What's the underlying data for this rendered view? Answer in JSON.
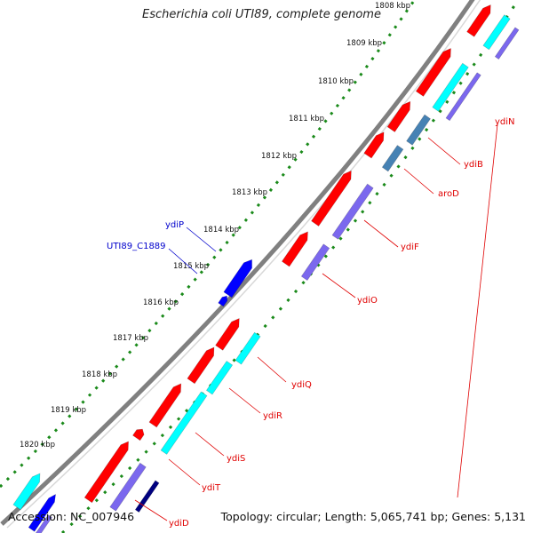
{
  "title": "Escherichia coli UTI89, complete genome",
  "footer": {
    "accession": "Accession: NC_007946",
    "summary": "Topology: circular; Length: 5,065,741 bp; Genes: 5,131"
  },
  "colors": {
    "red": "#ff0000",
    "cyan": "#00ffff",
    "blue": "#0000ff",
    "slate_blue": "#7b68ee",
    "steel_blue": "#4682b4",
    "navy": "#000080",
    "grey_backbone": "#808080",
    "tick_green": "#008000",
    "label_red": "#e00000",
    "label_blue": "#0000cc"
  },
  "ticks": [
    {
      "label": "1808 kbp"
    },
    {
      "label": "1809 kbp"
    },
    {
      "label": "1810 kbp"
    },
    {
      "label": "1811 kbp"
    },
    {
      "label": "1812 kbp"
    },
    {
      "label": "1813 kbp"
    },
    {
      "label": "1814 kbp"
    },
    {
      "label": "1815 kbp"
    },
    {
      "label": "1816 kbp"
    },
    {
      "label": "1817 kbp"
    },
    {
      "label": "1818 kbp"
    },
    {
      "label": "1819 kbp"
    },
    {
      "label": "1820 kbp"
    }
  ],
  "genes": [
    {
      "label": "ydiN",
      "color": "label_red"
    },
    {
      "label": "ydiB",
      "color": "label_red"
    },
    {
      "label": "aroD",
      "color": "label_red"
    },
    {
      "label": "ydiF",
      "color": "label_red"
    },
    {
      "label": "ydiO",
      "color": "label_red"
    },
    {
      "label": "ydiP",
      "color": "label_blue"
    },
    {
      "label": "UTI89_C1889",
      "color": "label_blue"
    },
    {
      "label": "ydiQ",
      "color": "label_red"
    },
    {
      "label": "ydiR",
      "color": "label_red"
    },
    {
      "label": "ydiS",
      "color": "label_red"
    },
    {
      "label": "ydiT",
      "color": "label_red"
    },
    {
      "label": "ydiD",
      "color": "label_red"
    }
  ]
}
